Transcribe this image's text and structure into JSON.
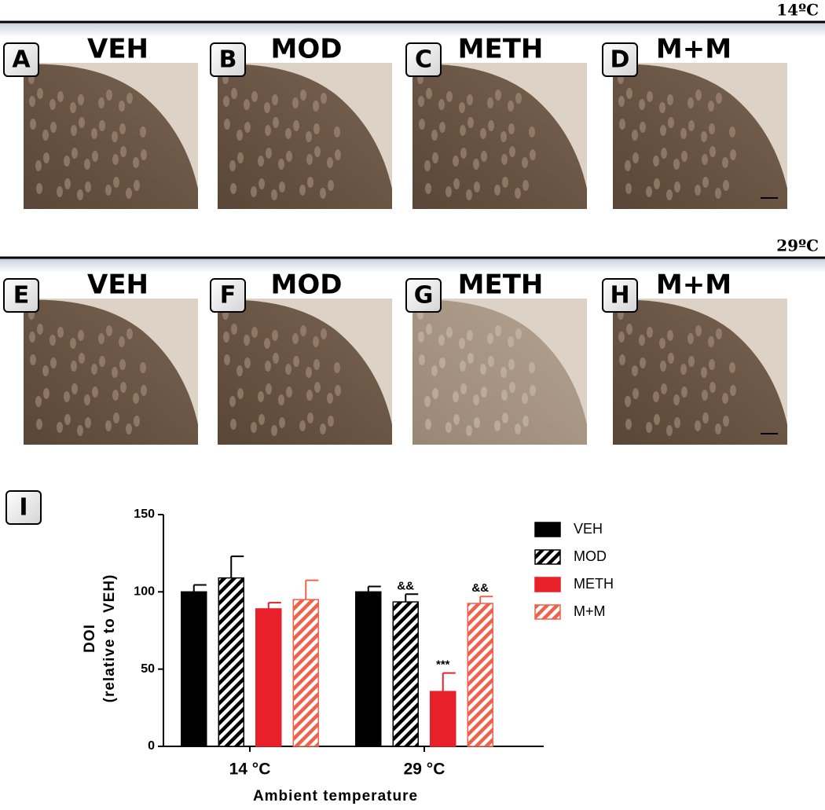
{
  "panels": [
    {
      "temperature": "14ºC",
      "images": [
        {
          "letter": "A",
          "label": "VEH"
        },
        {
          "letter": "B",
          "label": "MOD"
        },
        {
          "letter": "C",
          "label": "METH"
        },
        {
          "letter": "D",
          "label": "M+M"
        }
      ]
    },
    {
      "temperature": "29ºC",
      "images": [
        {
          "letter": "E",
          "label": "VEH"
        },
        {
          "letter": "F",
          "label": "MOD"
        },
        {
          "letter": "G",
          "label": "METH"
        },
        {
          "letter": "H",
          "label": "M+M"
        }
      ]
    }
  ],
  "chart_letter": "I",
  "chart_data": {
    "type": "bar",
    "ylabel": [
      "DOI",
      "(relative to VEH)"
    ],
    "xlabel": "Ambient temperature",
    "categories": [
      "14 °C",
      "29 °C"
    ],
    "ylim": [
      0,
      150
    ],
    "yticks": [
      0,
      50,
      100,
      150
    ],
    "series": [
      {
        "name": "VEH",
        "color": "#000000",
        "hatch": false,
        "values": [
          100,
          100
        ],
        "errors": [
          4.5,
          3.5
        ],
        "annotations": [
          null,
          null
        ]
      },
      {
        "name": "MOD",
        "color": "#000000",
        "hatch": true,
        "values": [
          109,
          93.5
        ],
        "errors": [
          14,
          5
        ],
        "annotations": [
          null,
          "&&"
        ]
      },
      {
        "name": "METH",
        "color": "#e8202a",
        "hatch": false,
        "values": [
          89,
          35.5
        ],
        "errors": [
          4,
          12
        ],
        "annotations": [
          null,
          "***"
        ]
      },
      {
        "name": "M+M",
        "color": "#f0604a",
        "hatch": true,
        "values": [
          95,
          92.5
        ],
        "errors": [
          12.5,
          4.5
        ],
        "annotations": [
          null,
          "&&"
        ]
      }
    ]
  }
}
